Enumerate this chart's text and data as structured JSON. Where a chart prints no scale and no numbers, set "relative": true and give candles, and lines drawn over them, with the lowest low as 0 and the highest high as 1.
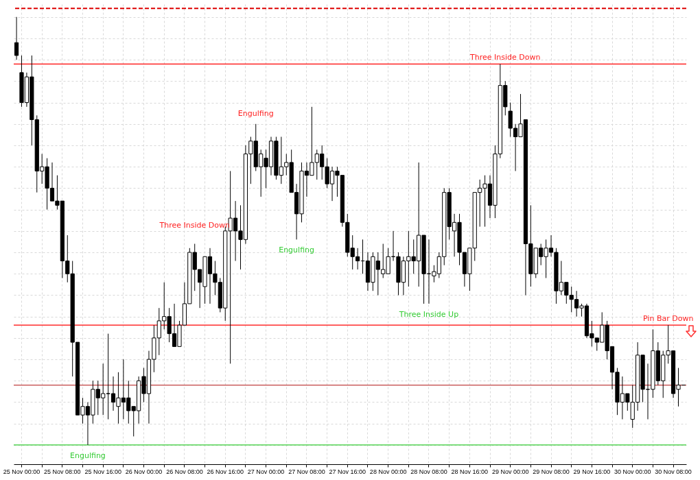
{
  "chart_data": {
    "type": "candlestick",
    "relative": true,
    "grid": true,
    "categories": [
      null,
      "25 Nov 00:00",
      null,
      null,
      null,
      null,
      null,
      null,
      null,
      "25 Nov 08:00",
      null,
      null,
      null,
      null,
      null,
      null,
      null,
      "25 Nov 16:00",
      null,
      null,
      null,
      null,
      null,
      null,
      null,
      "26 Nov 00:00",
      null,
      null,
      null,
      null,
      null,
      null,
      null,
      "26 Nov 08:00",
      null,
      null,
      null,
      null,
      null,
      null,
      null,
      "26 Nov 16:00",
      null,
      null,
      null,
      null,
      null,
      null,
      null,
      "27 Nov 00:00",
      null,
      null,
      null,
      null,
      null,
      null,
      null,
      "27 Nov 08:00",
      null,
      null,
      null,
      null,
      null,
      null,
      null,
      "27 Nov 16:00",
      null,
      null,
      null,
      null,
      null,
      null,
      null,
      "28 Nov 00:00",
      null,
      null,
      null,
      null,
      null,
      null,
      null,
      "28 Nov 08:00",
      null,
      null,
      null,
      null,
      null,
      null,
      null,
      "28 Nov 16:00",
      null,
      null,
      null,
      null,
      null,
      null,
      null,
      "29 Nov 00:00",
      null,
      null,
      null,
      null,
      null,
      null,
      null,
      "29 Nov 08:00",
      null,
      null,
      null,
      null,
      null,
      null,
      null,
      "29 Nov 16:00",
      null,
      null,
      null,
      null,
      null,
      null,
      null,
      "30 Nov 00:00",
      null,
      null,
      null,
      null,
      null,
      null,
      null,
      "30 Nov 08:00",
      null,
      null
    ],
    "ohlc": [
      [
        0.94,
        1.0,
        0.9,
        0.91
      ],
      [
        0.87,
        0.91,
        0.79,
        0.8
      ],
      [
        0.8,
        0.87,
        0.79,
        0.86
      ],
      [
        0.86,
        0.91,
        0.7,
        0.76
      ],
      [
        0.76,
        0.77,
        0.59,
        0.64
      ],
      [
        0.64,
        0.68,
        0.61,
        0.65
      ],
      [
        0.65,
        0.67,
        0.55,
        0.6
      ],
      [
        0.6,
        0.66,
        0.57,
        0.57
      ],
      [
        0.57,
        0.63,
        0.55,
        0.56
      ],
      [
        0.57,
        0.57,
        0.39,
        0.43
      ],
      [
        0.43,
        0.49,
        0.38,
        0.4
      ],
      [
        0.4,
        0.43,
        0.16,
        0.24
      ],
      [
        0.24,
        0.24,
        0.07,
        0.07
      ],
      [
        0.07,
        0.11,
        0.05,
        0.09
      ],
      [
        0.09,
        0.1,
        0.0,
        0.07
      ],
      [
        0.07,
        0.15,
        0.05,
        0.13
      ],
      [
        0.13,
        0.15,
        0.07,
        0.11
      ],
      [
        0.11,
        0.19,
        0.07,
        0.12
      ],
      [
        0.12,
        0.26,
        0.06,
        0.12
      ],
      [
        0.12,
        0.16,
        0.08,
        0.1
      ],
      [
        0.09,
        0.17,
        0.05,
        0.11
      ],
      [
        0.11,
        0.2,
        0.06,
        0.1
      ],
      [
        0.11,
        0.15,
        0.05,
        0.08
      ],
      [
        0.09,
        0.09,
        0.02,
        0.08
      ],
      [
        0.08,
        0.16,
        0.05,
        0.15
      ],
      [
        0.16,
        0.18,
        0.1,
        0.12
      ],
      [
        0.12,
        0.22,
        0.05,
        0.2
      ],
      [
        0.2,
        0.28,
        0.17,
        0.25
      ],
      [
        0.25,
        0.32,
        0.21,
        0.29
      ],
      [
        0.29,
        0.38,
        0.27,
        0.3
      ],
      [
        0.3,
        0.32,
        0.24,
        0.26
      ],
      [
        0.26,
        0.33,
        0.23,
        0.23
      ],
      [
        0.23,
        0.29,
        0.23,
        0.28
      ],
      [
        0.28,
        0.38,
        0.28,
        0.33
      ],
      [
        0.33,
        0.46,
        0.33,
        0.45
      ],
      [
        0.45,
        0.47,
        0.36,
        0.41
      ],
      [
        0.41,
        0.41,
        0.32,
        0.38
      ],
      [
        0.37,
        0.44,
        0.33,
        0.44
      ],
      [
        0.44,
        0.46,
        0.33,
        0.4
      ],
      [
        0.4,
        0.43,
        0.35,
        0.38
      ],
      [
        0.38,
        0.39,
        0.31,
        0.32
      ],
      [
        0.32,
        0.51,
        0.29,
        0.5
      ],
      [
        0.5,
        0.64,
        0.19,
        0.53
      ],
      [
        0.53,
        0.57,
        0.43,
        0.5
      ],
      [
        0.5,
        0.56,
        0.41,
        0.48
      ],
      [
        0.48,
        0.7,
        0.47,
        0.68
      ],
      [
        0.68,
        0.72,
        0.61,
        0.71
      ],
      [
        0.71,
        0.75,
        0.64,
        0.65
      ],
      [
        0.65,
        0.69,
        0.58,
        0.68
      ],
      [
        0.67,
        0.69,
        0.6,
        0.65
      ],
      [
        0.65,
        0.72,
        0.63,
        0.71
      ],
      [
        0.71,
        0.72,
        0.62,
        0.63
      ],
      [
        0.63,
        0.72,
        0.61,
        0.65
      ],
      [
        0.65,
        0.68,
        0.63,
        0.66
      ],
      [
        0.66,
        0.69,
        0.59,
        0.59
      ],
      [
        0.59,
        0.61,
        0.48,
        0.54
      ],
      [
        0.54,
        0.66,
        0.52,
        0.64
      ],
      [
        0.64,
        0.66,
        0.58,
        0.63
      ],
      [
        0.63,
        0.79,
        0.63,
        0.66
      ],
      [
        0.66,
        0.69,
        0.62,
        0.68
      ],
      [
        0.68,
        0.7,
        0.62,
        0.65
      ],
      [
        0.65,
        0.67,
        0.6,
        0.61
      ],
      [
        0.61,
        0.65,
        0.57,
        0.64
      ],
      [
        0.64,
        0.65,
        0.58,
        0.63
      ],
      [
        0.63,
        0.63,
        0.51,
        0.52
      ],
      [
        0.52,
        0.54,
        0.44,
        0.45
      ],
      [
        0.46,
        0.49,
        0.41,
        0.44
      ],
      [
        0.44,
        0.46,
        0.41,
        0.43
      ],
      [
        0.43,
        0.48,
        0.4,
        0.43
      ],
      [
        0.43,
        0.45,
        0.36,
        0.38
      ],
      [
        0.38,
        0.45,
        0.36,
        0.44
      ],
      [
        0.43,
        0.45,
        0.35,
        0.41
      ],
      [
        0.4,
        0.47,
        0.39,
        0.41
      ],
      [
        0.4,
        0.46,
        0.4,
        0.44
      ],
      [
        0.44,
        0.5,
        0.43,
        0.44
      ],
      [
        0.44,
        0.45,
        0.35,
        0.38
      ],
      [
        0.38,
        0.44,
        0.35,
        0.43
      ],
      [
        0.43,
        0.5,
        0.37,
        0.44
      ],
      [
        0.44,
        0.48,
        0.4,
        0.43
      ],
      [
        0.43,
        0.66,
        0.37,
        0.49
      ],
      [
        0.49,
        0.49,
        0.33,
        0.4
      ],
      [
        0.4,
        0.48,
        0.33,
        0.4
      ],
      [
        0.395,
        0.42,
        0.38,
        0.405
      ],
      [
        0.4,
        0.45,
        0.39,
        0.44
      ],
      [
        0.44,
        0.6,
        0.42,
        0.59
      ],
      [
        0.59,
        0.6,
        0.48,
        0.51
      ],
      [
        0.5,
        0.54,
        0.44,
        0.52
      ],
      [
        0.52,
        0.54,
        0.42,
        0.45
      ],
      [
        0.45,
        0.45,
        0.37,
        0.4
      ],
      [
        0.4,
        0.46,
        0.36,
        0.46
      ],
      [
        0.46,
        0.59,
        0.43,
        0.59
      ],
      [
        0.59,
        0.62,
        0.51,
        0.6
      ],
      [
        0.6,
        0.63,
        0.51,
        0.61
      ],
      [
        0.61,
        0.63,
        0.53,
        0.56
      ],
      [
        0.56,
        0.7,
        0.53,
        0.68
      ],
      [
        0.68,
        0.89,
        0.67,
        0.84
      ],
      [
        0.84,
        0.85,
        0.77,
        0.79
      ],
      [
        0.78,
        0.8,
        0.72,
        0.74
      ],
      [
        0.74,
        0.75,
        0.64,
        0.72
      ],
      [
        0.72,
        0.82,
        0.72,
        0.75
      ],
      [
        0.76,
        0.76,
        0.35,
        0.47
      ],
      [
        0.47,
        0.56,
        0.37,
        0.4
      ],
      [
        0.4,
        0.46,
        0.39,
        0.46
      ],
      [
        0.46,
        0.47,
        0.42,
        0.44
      ],
      [
        0.44,
        0.48,
        0.39,
        0.46
      ],
      [
        0.46,
        0.49,
        0.44,
        0.45
      ],
      [
        0.45,
        0.46,
        0.33,
        0.36
      ],
      [
        0.36,
        0.43,
        0.35,
        0.38
      ],
      [
        0.38,
        0.38,
        0.33,
        0.35
      ],
      [
        0.35,
        0.37,
        0.31,
        0.34
      ],
      [
        0.34,
        0.36,
        0.3,
        0.32
      ],
      [
        0.32,
        0.33,
        0.3,
        0.325
      ],
      [
        0.325,
        0.33,
        0.25,
        0.255
      ],
      [
        0.26,
        0.29,
        0.23,
        0.25
      ],
      [
        0.25,
        0.25,
        0.22,
        0.24
      ],
      [
        0.24,
        0.31,
        0.24,
        0.28
      ],
      [
        0.28,
        0.29,
        0.2,
        0.22
      ],
      [
        0.23,
        0.23,
        0.13,
        0.17
      ],
      [
        0.17,
        0.18,
        0.07,
        0.1
      ],
      [
        0.1,
        0.16,
        0.06,
        0.12
      ],
      [
        0.12,
        0.12,
        0.08,
        0.1
      ],
      [
        0.06,
        0.14,
        0.04,
        0.1
      ],
      [
        0.1,
        0.24,
        0.08,
        0.21
      ],
      [
        0.21,
        0.21,
        0.1,
        0.13
      ],
      [
        0.13,
        0.19,
        0.06,
        0.13
      ],
      [
        0.13,
        0.27,
        0.11,
        0.22
      ],
      [
        0.22,
        0.24,
        0.14,
        0.15
      ],
      [
        0.15,
        0.22,
        0.11,
        0.21
      ],
      [
        0.21,
        0.28,
        0.19,
        0.22
      ],
      [
        0.22,
        0.22,
        0.11,
        0.12
      ],
      [
        0.13,
        0.18,
        0.09,
        0.14
      ],
      [
        0.14,
        0.14,
        0.14,
        0.14
      ]
    ],
    "annotations": [
      {
        "text": "Engulfing",
        "y": 0
      },
      "Three Inside Down",
      "Engulfing",
      "Engulfing",
      "Three Inside Up",
      {
        "text": "Three Inside Down",
        "y": 0.89
      },
      {
        "text": "Pin Bar Down",
        "y": 0.28
      }
    ],
    "ref_lines": [
      {
        "axis": "y",
        "value": 1.02,
        "color": "#dd0000",
        "line_style": "dashed"
      },
      {
        "axis": "y",
        "value": 0.89,
        "color": "#ff0000"
      },
      {
        "axis": "y",
        "value": 0.28,
        "color": "#ff0000"
      },
      {
        "axis": "y",
        "value": 0.14,
        "color": "#c04040"
      },
      {
        "axis": "y",
        "value": 0,
        "color": "#33cc33"
      }
    ]
  }
}
